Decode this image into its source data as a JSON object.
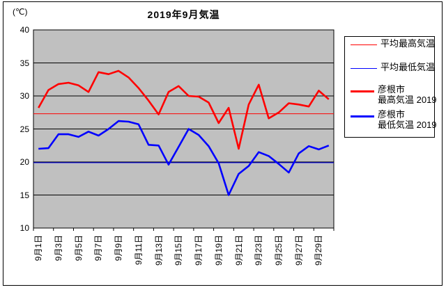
{
  "title": "2019年9月気温",
  "y_unit": "(℃)",
  "chart_data": {
    "type": "line",
    "title": "2019年9月気温",
    "ylabel": "(℃)",
    "ylim": [
      10,
      40
    ],
    "yticks": [
      40,
      35,
      30,
      25,
      20,
      15,
      10
    ],
    "x_labels": [
      "9月1日",
      "9月3日",
      "9月5日",
      "9月7日",
      "9月9日",
      "9月11日",
      "9月13日",
      "9月15日",
      "9月17日",
      "9月19日",
      "9月21日",
      "9月23日",
      "9月25日",
      "9月27日",
      "9月29日"
    ],
    "days": 30,
    "grid": true,
    "plot_bg": "#c0c0c0",
    "axis_color": "#000000",
    "series": [
      {
        "name": "平均最高気温",
        "color": "#ff0000",
        "width": 1,
        "constant": 27.3
      },
      {
        "name": "平均最低気温",
        "color": "#0000ff",
        "width": 1,
        "constant": 19.9
      },
      {
        "name": "彦根市 最高気温2019",
        "color": "#ff0000",
        "width": 2.6,
        "values": [
          28.2,
          30.9,
          31.8,
          32.0,
          31.6,
          30.6,
          33.6,
          33.3,
          33.8,
          32.8,
          31.2,
          29.3,
          27.2,
          30.6,
          31.5,
          30.0,
          29.9,
          29.0,
          25.9,
          28.2,
          22.0,
          28.7,
          31.7,
          26.6,
          27.5,
          28.9,
          28.7,
          28.4,
          30.8,
          29.5
        ]
      },
      {
        "name": "彦根市 最低気温2019",
        "color": "#0000ff",
        "width": 2.6,
        "values": [
          22.0,
          22.1,
          24.2,
          24.2,
          23.8,
          24.6,
          24.0,
          25.0,
          26.2,
          26.1,
          25.7,
          22.6,
          22.5,
          19.6,
          22.3,
          25.0,
          24.1,
          22.4,
          19.8,
          15.0,
          18.2,
          19.4,
          21.5,
          20.9,
          19.7,
          18.4,
          21.3,
          22.4,
          21.9,
          22.5
        ]
      }
    ],
    "legend_position": "right",
    "legend": [
      {
        "label": "平均最高気温",
        "label2": "",
        "color": "#ff0000",
        "thick": false
      },
      {
        "label": "平均最低気温",
        "label2": "",
        "color": "#0000ff",
        "thick": false
      },
      {
        "label": "彦根市",
        "label2": "最高気温 2019",
        "color": "#ff0000",
        "thick": true
      },
      {
        "label": "彦根市",
        "label2": "最低気温 2019",
        "color": "#0000ff",
        "thick": true
      }
    ]
  }
}
